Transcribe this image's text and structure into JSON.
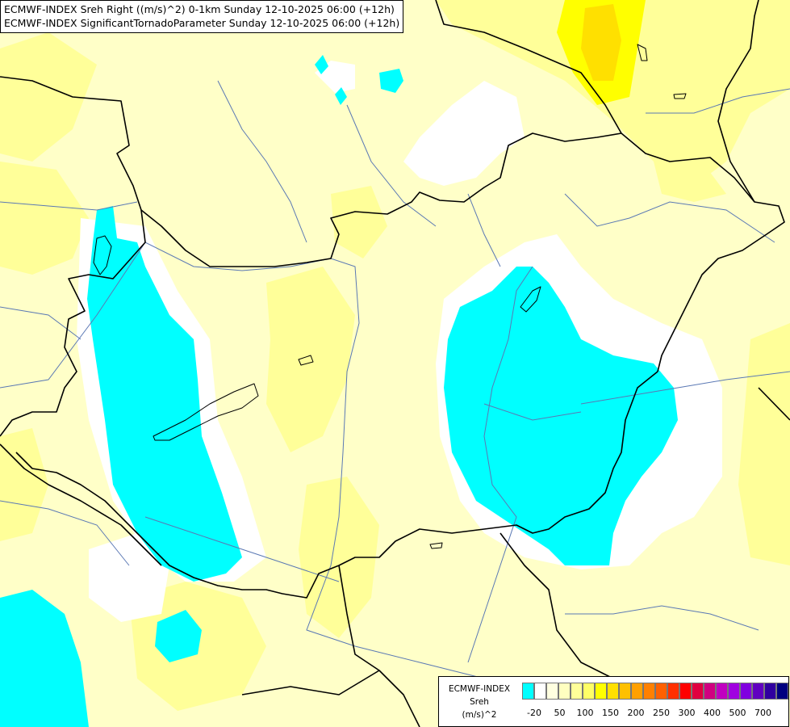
{
  "header": {
    "line1": "ECMWF-INDEX Sreh Right ((m/s)^2) 0-1km Sunday 12-10-2025 06:00 (+12h)",
    "line2": "ECMWF-INDEX SignificantTornadoParameter Sunday 12-10-2025 06:00 (+12h)"
  },
  "legend": {
    "title": "ECMWF-INDEX",
    "variable": "Sreh",
    "unit": "(m/s)^2",
    "ticks": [
      "-20",
      "50",
      "100",
      "150",
      "200",
      "250",
      "300",
      "400",
      "500",
      "700"
    ],
    "colors": [
      "#00ffff",
      "#ffffff",
      "#ffffe0",
      "#ffffc0",
      "#ffff99",
      "#ffff66",
      "#ffff00",
      "#ffe000",
      "#ffc000",
      "#ffa000",
      "#ff8000",
      "#ff6000",
      "#ff3000",
      "#ff0000",
      "#e00040",
      "#d00080",
      "#c000c0",
      "#a000e0",
      "#8000e0",
      "#6000c0",
      "#3000a0",
      "#000080"
    ]
  },
  "map": {
    "colors": {
      "background": "#ffffc8",
      "light_yellow": "#ffff99",
      "yellow": "#ffff00",
      "dark_yellow": "#ffe000",
      "white": "#ffffff",
      "cyan": "#00ffff",
      "border": "#000000",
      "river": "#5a78b4"
    }
  }
}
